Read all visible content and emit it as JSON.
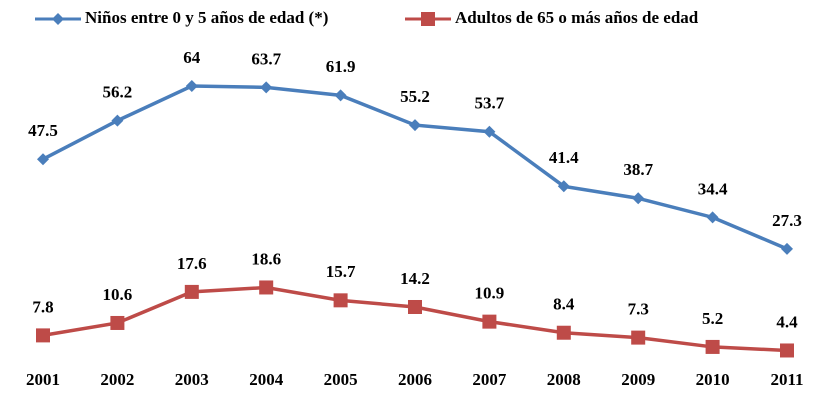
{
  "chart_data": {
    "type": "line",
    "categories": [
      "2001",
      "2002",
      "2003",
      "2004",
      "2005",
      "2006",
      "2007",
      "2008",
      "2009",
      "2010",
      "2011"
    ],
    "series": [
      {
        "name": "Niños entre 0 y 5 años de edad (*)",
        "color": "#4a7ebb",
        "marker": "diamond",
        "values": [
          47.5,
          56.2,
          64,
          63.7,
          61.9,
          55.2,
          53.7,
          41.4,
          38.7,
          34.4,
          27.3
        ]
      },
      {
        "name": "Adultos de 65 o más años de edad",
        "color": "#be4b48",
        "marker": "square",
        "values": [
          7.8,
          10.6,
          17.6,
          18.6,
          15.7,
          14.2,
          10.9,
          8.4,
          7.3,
          5.2,
          4.4
        ]
      }
    ],
    "ylim": [
      0,
      70
    ],
    "legend": "top"
  }
}
